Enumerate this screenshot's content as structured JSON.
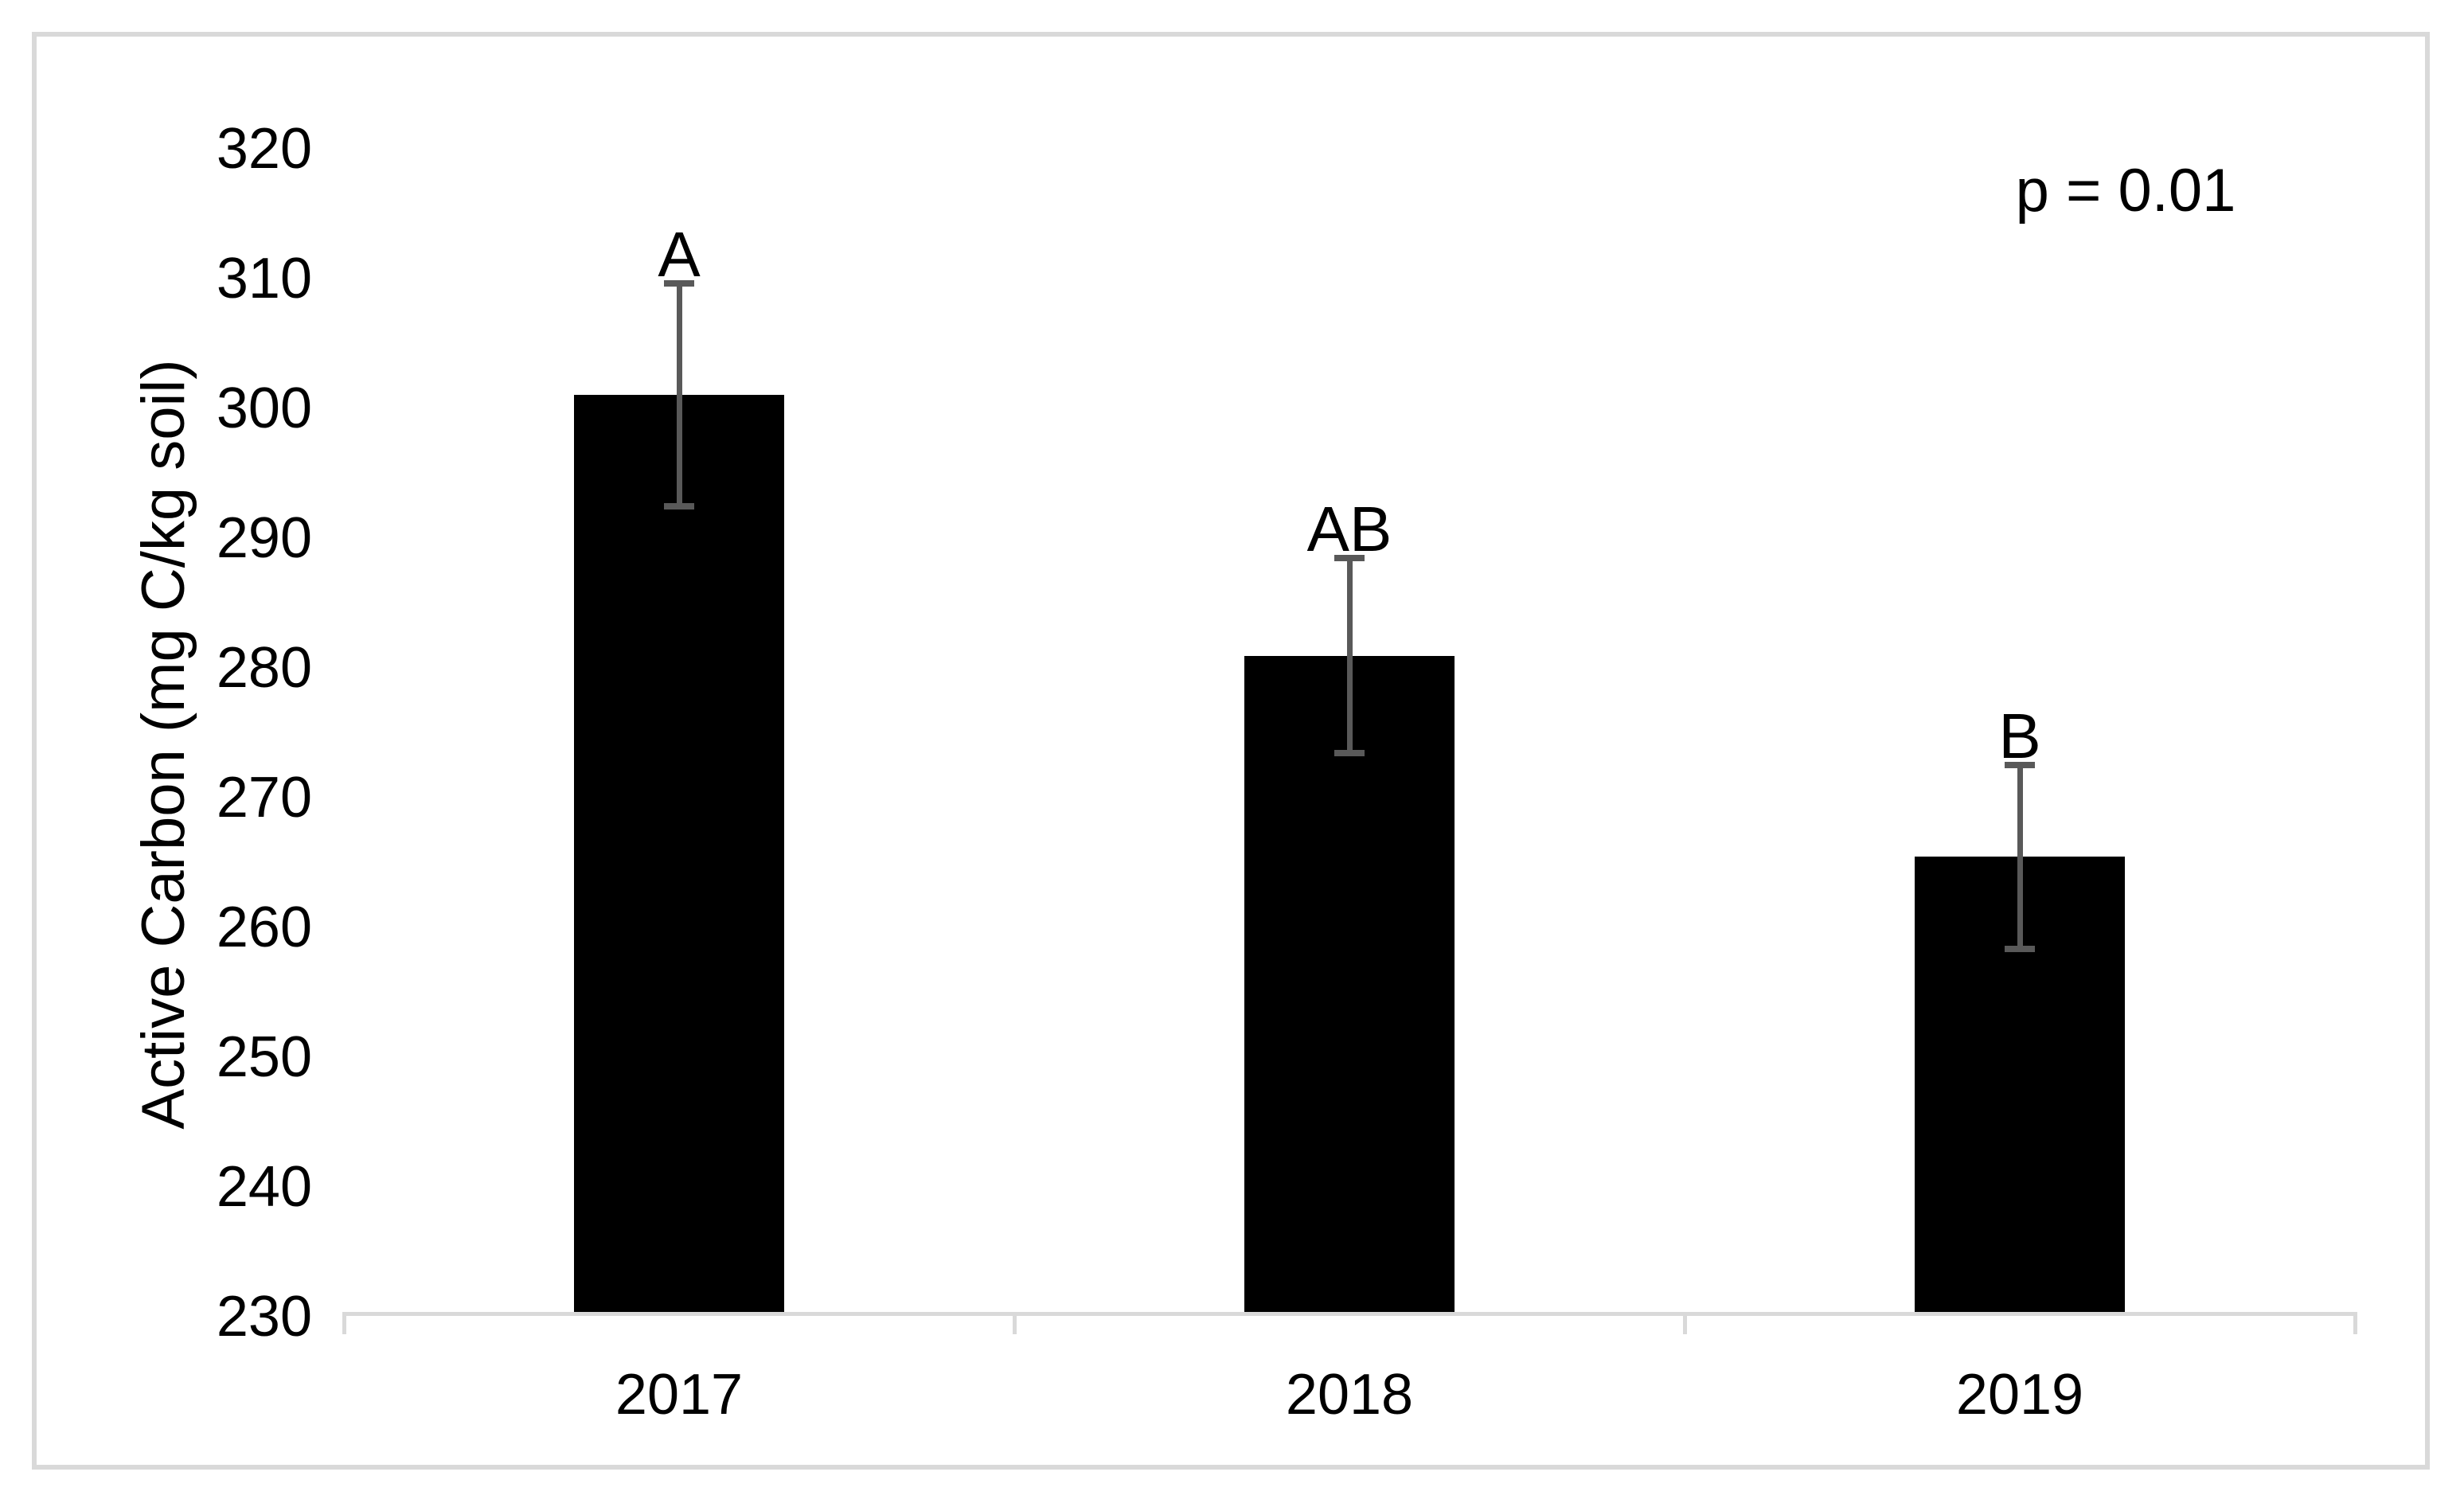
{
  "figure": {
    "background": "#ffffff",
    "border_color": "#d9d9d9"
  },
  "chart_data": {
    "type": "bar",
    "title": "",
    "categories": [
      "2017",
      "2018",
      "2019"
    ],
    "values": [
      300.8,
      280.7,
      265.2
    ],
    "error_bars": [
      8.6,
      7.5,
      7.1
    ],
    "sig_letters": [
      "A",
      "AB",
      "B"
    ],
    "annotation": "p = 0.01",
    "xlabel": "",
    "ylabel": "Active Carbon (mg C/kg soil)",
    "ylim": [
      230,
      320
    ],
    "ytick_step": 10,
    "ytick_labels": [
      "230",
      "240",
      "250",
      "260",
      "270",
      "280",
      "290",
      "300",
      "310",
      "320"
    ],
    "grid": false,
    "legend": "none",
    "bar_color": "#000000",
    "error_bar_color": "#595959",
    "axis_color": "#d9d9d9",
    "text_color": "#000000"
  }
}
